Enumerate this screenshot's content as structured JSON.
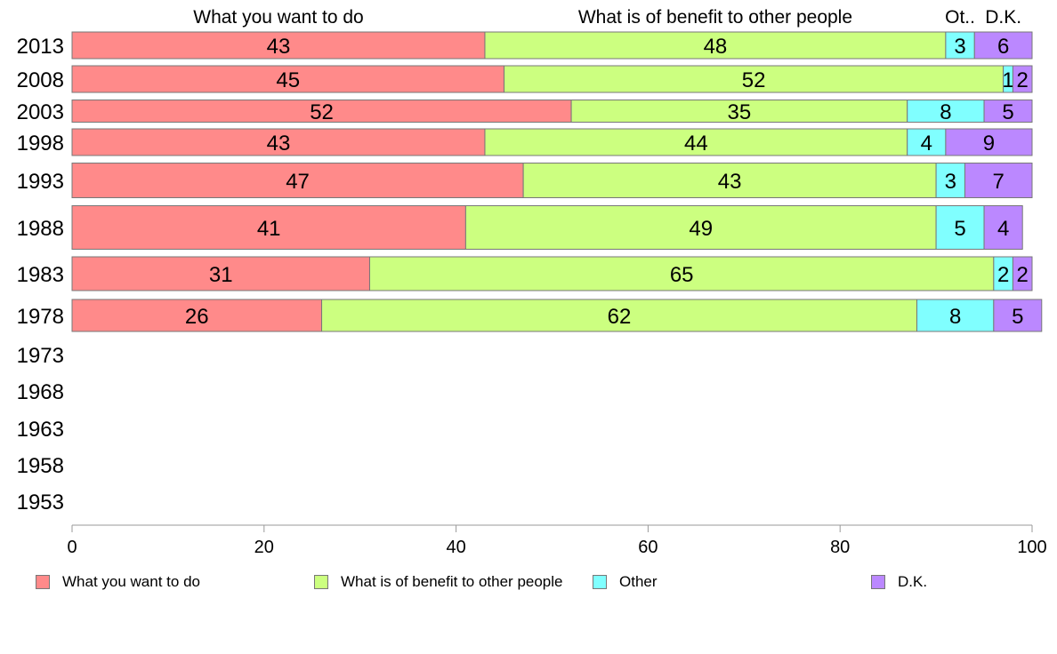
{
  "chart_data": {
    "type": "bar",
    "orientation": "horizontal",
    "stacked": true,
    "categories": [
      "2013",
      "2008",
      "2003",
      "1998",
      "1993",
      "1988",
      "1983",
      "1978",
      "1973",
      "1968",
      "1963",
      "1958",
      "1953"
    ],
    "series": [
      {
        "name": "What you want to do",
        "header": "What you want to do",
        "color": "#ff8a8a",
        "values": [
          43,
          45,
          52,
          43,
          47,
          41,
          31,
          26,
          null,
          null,
          null,
          null,
          null
        ]
      },
      {
        "name": "What is of benefit to other people",
        "header": "What is of benefit to other people",
        "color": "#ccff80",
        "values": [
          48,
          52,
          35,
          44,
          43,
          49,
          65,
          62,
          null,
          null,
          null,
          null,
          null
        ]
      },
      {
        "name": "Other",
        "header": "Ot..",
        "color": "#80ffff",
        "values": [
          3,
          1,
          8,
          4,
          3,
          5,
          2,
          8,
          null,
          null,
          null,
          null,
          null
        ]
      },
      {
        "name": "D.K.",
        "header": "D.K.",
        "color": "#bb88ff",
        "values": [
          6,
          2,
          5,
          9,
          7,
          4,
          2,
          5,
          null,
          null,
          null,
          null,
          null
        ]
      }
    ],
    "xlim": [
      0,
      100
    ],
    "xticks": [
      0,
      20,
      40,
      60,
      80,
      100
    ],
    "grid": false,
    "legend_position": "bottom"
  }
}
